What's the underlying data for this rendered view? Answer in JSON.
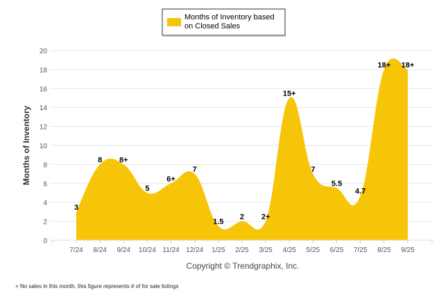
{
  "chart_data": {
    "type": "area",
    "legend": {
      "label_line1": "Months of Inventory based",
      "label_line2": "on Closed Sales",
      "placement": "top-center"
    },
    "ylabel": "Months of Inventory",
    "xlabel": "",
    "ylim": [
      0,
      20
    ],
    "yticks": [
      "0",
      "2",
      "4",
      "6",
      "8",
      "10",
      "12",
      "14",
      "16",
      "18",
      "20"
    ],
    "grid": true,
    "categories": [
      "7/24",
      "8/24",
      "9/24",
      "10/24",
      "11/24",
      "12/24",
      "1/25",
      "2/25",
      "3/25",
      "4/25",
      "5/25",
      "6/25",
      "7/25",
      "8/25",
      "9/25"
    ],
    "series": [
      {
        "name": "Months of Inventory based on Closed Sales",
        "color": "#F7C508",
        "values": [
          3,
          8,
          8,
          5,
          6,
          7,
          1.5,
          2,
          2,
          15,
          7,
          5.5,
          4.7,
          18,
          18
        ],
        "labels": [
          "3",
          "8",
          "8+",
          "5",
          "6+",
          "7",
          "1.5",
          "2",
          "2+",
          "15+",
          "7",
          "5.5",
          "4.7",
          "18+",
          "18+"
        ]
      }
    ],
    "copyright": "Copyright © Trendgraphix, Inc.",
    "footnote": "+  No sales in this month, this figure represents # of for sale listings"
  }
}
